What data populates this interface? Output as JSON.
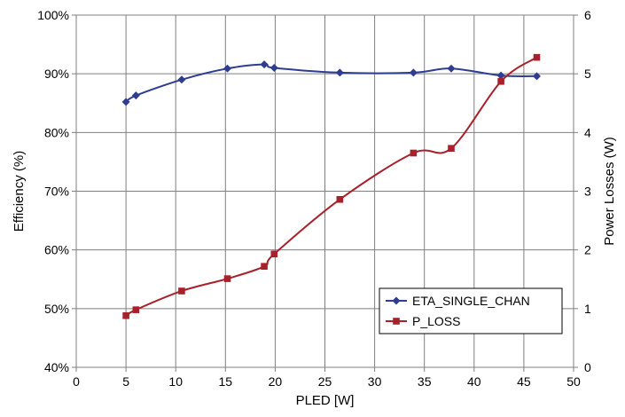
{
  "chart_data": {
    "type": "line",
    "xlabel": "PLED [W]",
    "ylabel": "Efficiency (%)",
    "y2label": "Power Losses (W)",
    "xlim": [
      0,
      50
    ],
    "ylim": [
      40,
      100
    ],
    "y2lim": [
      0,
      6
    ],
    "x_ticks": [
      "0",
      "5",
      "10",
      "15",
      "20",
      "25",
      "30",
      "35",
      "40",
      "45",
      "50"
    ],
    "y_ticks": [
      "40%",
      "50%",
      "60%",
      "70%",
      "80%",
      "90%",
      "100%"
    ],
    "y2_ticks": [
      "0",
      "1",
      "2",
      "3",
      "4",
      "5",
      "6"
    ],
    "grid": true,
    "legend_position": "bottom-right",
    "series": [
      {
        "name": "ETA_SINGLE_CHAN",
        "axis": "left",
        "color": "#2e3d91",
        "marker": "diamond",
        "x": [
          5.0,
          6.0,
          10.6,
          15.2,
          18.9,
          19.9,
          26.5,
          33.9,
          37.7,
          42.7,
          46.3
        ],
        "y": [
          85.2,
          86.3,
          89.0,
          90.9,
          91.6,
          91.0,
          90.2,
          90.2,
          90.9,
          89.7,
          89.6
        ]
      },
      {
        "name": "P_LOSS",
        "axis": "right",
        "color": "#a8212a",
        "marker": "square",
        "x": [
          5.0,
          6.0,
          10.6,
          15.2,
          18.9,
          19.9,
          26.5,
          33.9,
          37.7,
          42.7,
          46.3
        ],
        "y": [
          0.88,
          0.98,
          1.3,
          1.51,
          1.72,
          1.93,
          2.86,
          3.65,
          3.73,
          4.87,
          5.28
        ]
      }
    ]
  }
}
